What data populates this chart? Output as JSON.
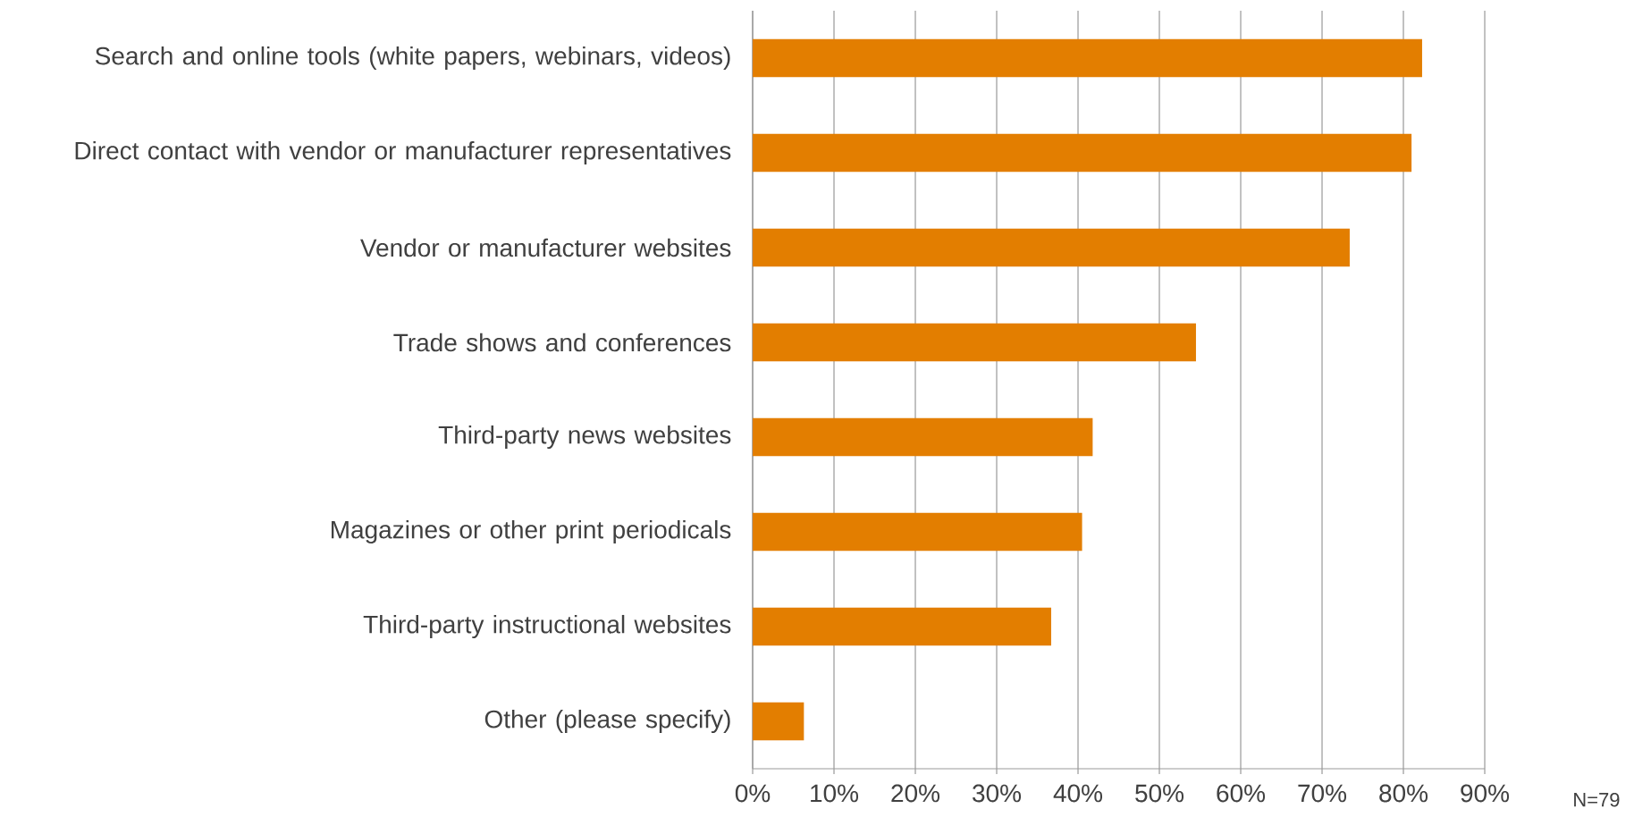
{
  "chart_data": {
    "type": "bar",
    "orientation": "horizontal",
    "categories": [
      "Search and online tools (white papers, webinars, videos)",
      "Direct contact with vendor or manufacturer representatives",
      "Vendor or manufacturer websites",
      "Trade shows and conferences",
      "Third-party news websites",
      "Magazines or other print periodicals",
      "Third-party instructional websites",
      "Other (please specify)"
    ],
    "values": [
      82.3,
      81.0,
      73.4,
      54.5,
      41.8,
      40.5,
      36.7,
      6.3
    ],
    "color": "#e37e00",
    "xlim": [
      0,
      90
    ],
    "xticks": [
      {
        "value": 0,
        "label": "0%"
      },
      {
        "value": 10,
        "label": "10%"
      },
      {
        "value": 20,
        "label": "20%"
      },
      {
        "value": 30,
        "label": "30%"
      },
      {
        "value": 40,
        "label": "40%"
      },
      {
        "value": 50,
        "label": "50%"
      },
      {
        "value": 60,
        "label": "60%"
      },
      {
        "value": 70,
        "label": "70%"
      },
      {
        "value": 80,
        "label": "80%"
      },
      {
        "value": 90,
        "label": "90%"
      }
    ],
    "grid": "x",
    "annotations": [
      "N=79"
    ]
  }
}
